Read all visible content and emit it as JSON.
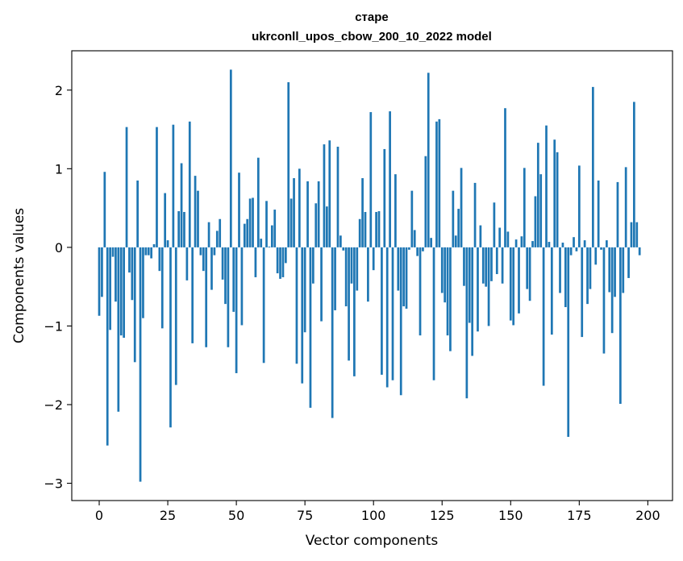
{
  "chart_data": {
    "type": "bar",
    "title_line1": "старе",
    "title_line2": "ukrconll_upos_cbow_200_10_2022 model",
    "xlabel": "Vector components",
    "ylabel": "Components values",
    "xlim": [
      -10,
      209
    ],
    "ylim": [
      -3.22,
      2.5
    ],
    "xticks": [
      0,
      25,
      50,
      75,
      100,
      125,
      150,
      175,
      200
    ],
    "yticks": [
      -3,
      -2,
      -1,
      0,
      1,
      2
    ],
    "bar_color": "#1f77b4",
    "grid": false,
    "values": [
      -0.87,
      -0.63,
      0.96,
      -2.52,
      -1.05,
      -0.12,
      -0.69,
      -2.09,
      -1.12,
      -1.15,
      1.53,
      -0.32,
      -0.67,
      -1.46,
      0.85,
      -2.98,
      -0.9,
      -0.1,
      -0.1,
      -0.14,
      0.04,
      1.53,
      -0.3,
      -1.03,
      0.69,
      0.09,
      -2.29,
      1.56,
      -1.75,
      0.46,
      1.07,
      0.45,
      -0.42,
      1.6,
      -1.22,
      0.91,
      0.72,
      -0.1,
      -0.3,
      -1.27,
      0.32,
      -0.54,
      -0.1,
      0.21,
      0.36,
      -0.41,
      -0.72,
      -1.27,
      2.26,
      -0.82,
      -1.6,
      0.95,
      -0.99,
      0.3,
      0.36,
      0.62,
      0.63,
      -0.38,
      1.14,
      0.11,
      -1.47,
      0.59,
      0.01,
      0.28,
      0.48,
      -0.33,
      -0.4,
      -0.38,
      -0.2,
      2.1,
      0.62,
      0.88,
      -1.48,
      1.0,
      -1.73,
      -1.08,
      0.84,
      -2.04,
      -0.46,
      0.56,
      0.84,
      -0.94,
      1.31,
      0.52,
      1.36,
      -2.17,
      -0.8,
      1.28,
      0.15,
      -0.04,
      -0.75,
      -1.44,
      -0.46,
      -1.64,
      -0.55,
      0.36,
      0.88,
      0.45,
      -0.69,
      1.72,
      -0.29,
      0.45,
      0.46,
      -1.62,
      1.25,
      -1.78,
      1.73,
      -1.69,
      0.93,
      -0.55,
      -1.88,
      -0.75,
      -0.78,
      -0.03,
      0.72,
      0.22,
      -0.11,
      -1.12,
      -0.05,
      1.16,
      2.22,
      0.12,
      -1.69,
      1.6,
      1.63,
      -0.58,
      -0.7,
      -1.12,
      -1.32,
      0.72,
      0.15,
      0.49,
      1.01,
      -0.49,
      -1.92,
      -0.96,
      -1.38,
      0.82,
      -1.07,
      0.28,
      -0.46,
      -0.5,
      -1.0,
      -0.43,
      0.57,
      -0.34,
      0.25,
      -0.46,
      1.77,
      0.2,
      -0.93,
      -0.99,
      0.1,
      -0.84,
      0.14,
      1.01,
      -0.53,
      -0.68,
      0.08,
      0.65,
      1.33,
      0.93,
      -1.76,
      1.55,
      0.07,
      -1.11,
      1.37,
      1.21,
      -0.58,
      0.06,
      -0.76,
      -2.41,
      -0.1,
      0.13,
      -0.05,
      1.04,
      -1.14,
      0.09,
      -0.72,
      -0.53,
      2.04,
      -0.22,
      0.85,
      -0.03,
      -1.35,
      0.09,
      -0.57,
      -1.09,
      -0.63,
      0.83,
      -1.99,
      -0.58,
      1.02,
      -0.39,
      0.32,
      1.85,
      0.32,
      -0.1
    ]
  }
}
